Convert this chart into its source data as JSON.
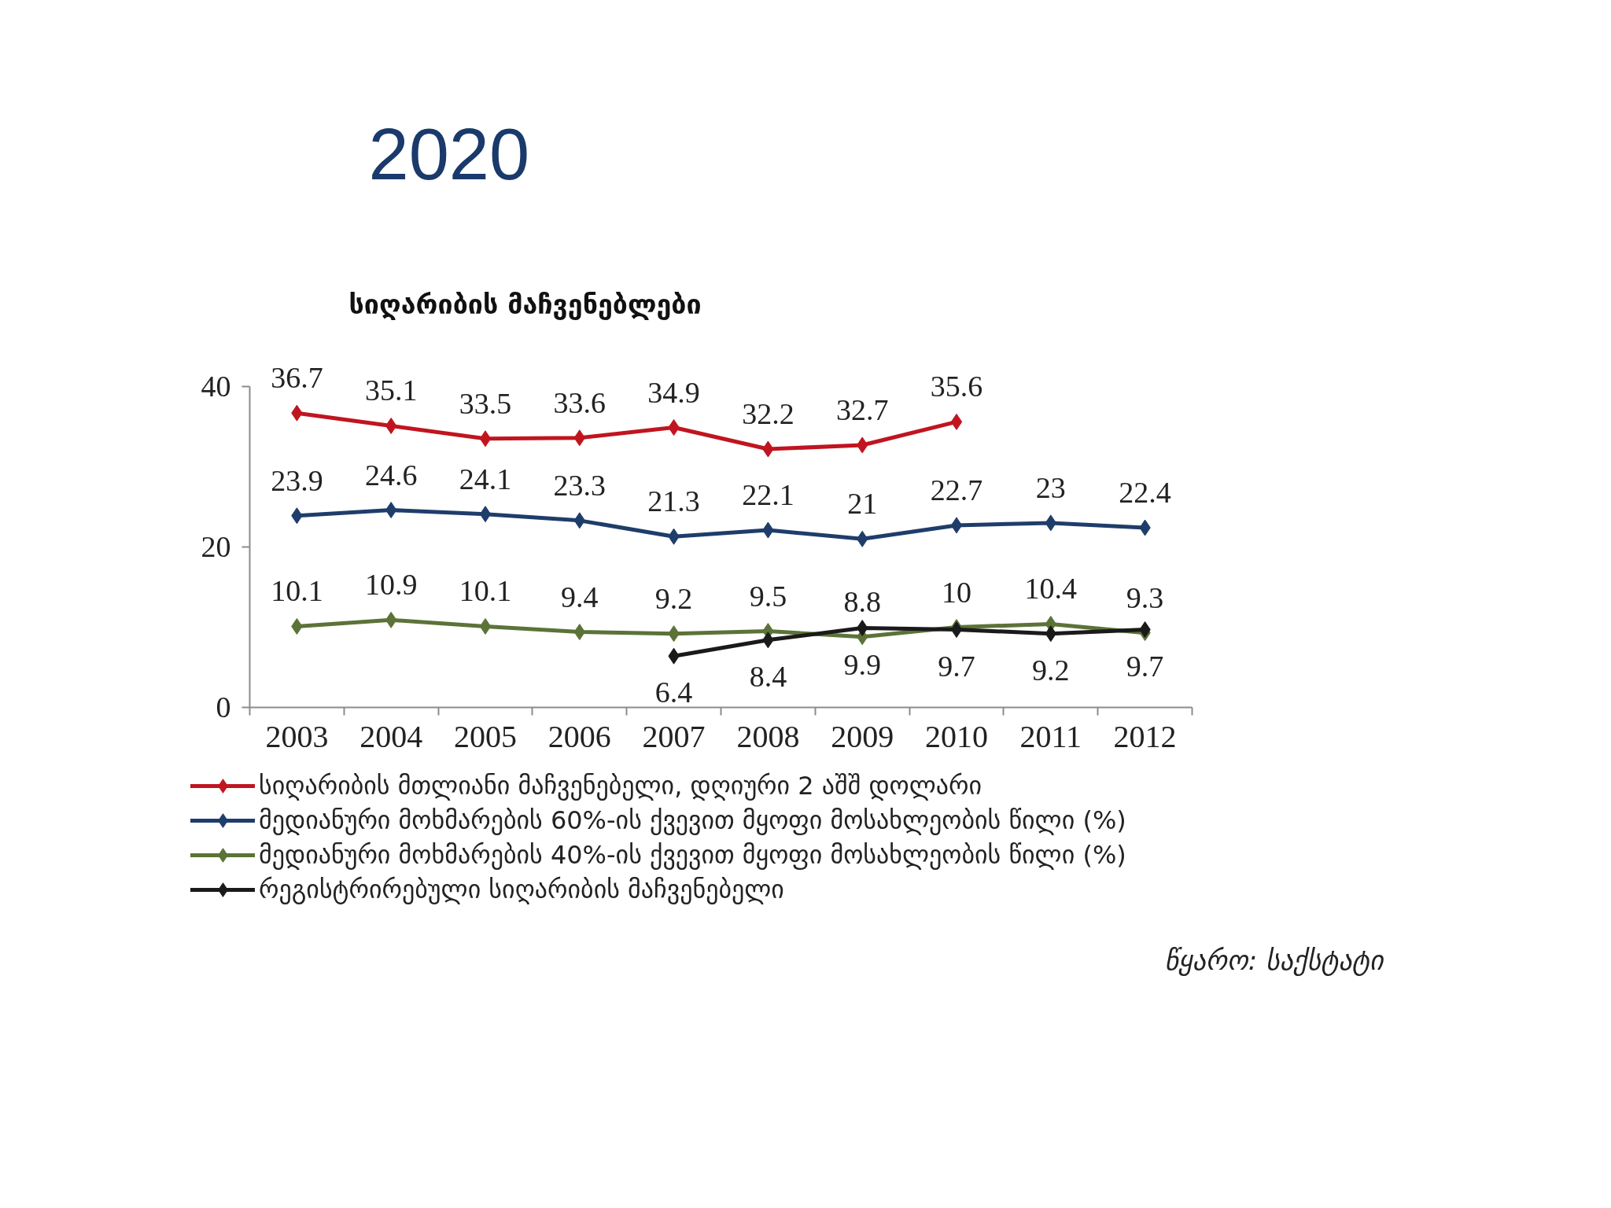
{
  "chart_data": {
    "type": "line",
    "title": "2020",
    "subtitle": "სიღარიბის მაჩვენებლები",
    "categories": [
      "2003",
      "2004",
      "2005",
      "2006",
      "2007",
      "2008",
      "2009",
      "2010",
      "2011",
      "2012"
    ],
    "series": [
      {
        "name": "სიღარიბის მთლიანი მაჩვენებელი, დღიური 2 აშშ დოლარი",
        "color": "#c0151f",
        "values": [
          36.7,
          35.1,
          33.5,
          33.6,
          34.9,
          32.2,
          32.7,
          35.6,
          null,
          null
        ]
      },
      {
        "name": "მედიანური მოხმარების 60%-ის ქვევით მყოფი მოსახლეობის წილი (%)",
        "color": "#1f3d6b",
        "values": [
          23.9,
          24.6,
          24.1,
          23.3,
          21.3,
          22.1,
          21,
          22.7,
          23,
          22.4
        ]
      },
      {
        "name": "მედიანური მოხმარების 40%-ის ქვევით მყოფი მოსახლეობის წილი (%)",
        "color": "#5b7337",
        "values": [
          10.1,
          10.9,
          10.1,
          9.4,
          9.2,
          9.5,
          8.8,
          10,
          10.4,
          9.3
        ]
      },
      {
        "name": "რეგისტრირებული სიღარიბის მაჩვენებელი",
        "color": "#1a1a1a",
        "values": [
          null,
          null,
          null,
          null,
          6.4,
          8.4,
          9.9,
          9.7,
          9.2,
          9.7
        ]
      }
    ],
    "ylim": [
      0,
      40
    ],
    "yticks": [
      0,
      20,
      40
    ],
    "marker": "diamond",
    "line_style": "solid",
    "data_labels": true,
    "grid": false,
    "legend": "bottom",
    "annotations": [
      "წყარო: საქსტატი"
    ]
  }
}
